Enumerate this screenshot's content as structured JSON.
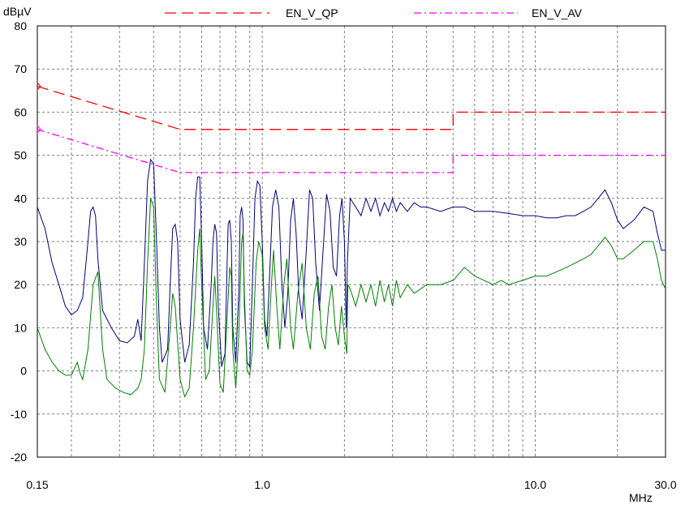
{
  "chart_data": {
    "type": "line",
    "ylabel": "dBµV",
    "xlabel": "MHz",
    "x_scale": "log",
    "xlim": [
      0.15,
      30.0
    ],
    "ylim": [
      -20,
      80
    ],
    "y_ticks": [
      -20,
      -10,
      0,
      10,
      20,
      30,
      40,
      50,
      60,
      70,
      80
    ],
    "x_tick_labels": [
      {
        "value": 0.15,
        "label": "0.15"
      },
      {
        "value": 1.0,
        "label": "1.0"
      },
      {
        "value": 10.0,
        "label": "10.0"
      },
      {
        "value": 30.0,
        "label": "30.0"
      }
    ],
    "grid": true,
    "legend": [
      {
        "name": "EN_V_QP",
        "color": "#ff0000",
        "style": "dashed"
      },
      {
        "name": "EN_V_AV",
        "color": "#ff00ff",
        "style": "dashdot"
      }
    ],
    "limit_lines": [
      {
        "name": "EN_V_QP",
        "color": "#ff0000",
        "style": "dashed",
        "points": [
          [
            0.15,
            66
          ],
          [
            0.5,
            56
          ],
          [
            5.0,
            56
          ],
          [
            5.0,
            60
          ],
          [
            30.0,
            60
          ]
        ]
      },
      {
        "name": "EN_V_AV",
        "color": "#ff00ff",
        "style": "dashdot",
        "points": [
          [
            0.15,
            56
          ],
          [
            0.5,
            46
          ],
          [
            5.0,
            46
          ],
          [
            5.0,
            50
          ],
          [
            30.0,
            50
          ]
        ]
      }
    ],
    "series": [
      {
        "color": "#000080",
        "points": [
          [
            0.15,
            38
          ],
          [
            0.16,
            33
          ],
          [
            0.17,
            25
          ],
          [
            0.18,
            20
          ],
          [
            0.19,
            15
          ],
          [
            0.2,
            13
          ],
          [
            0.21,
            14
          ],
          [
            0.22,
            17
          ],
          [
            0.23,
            30
          ],
          [
            0.235,
            37
          ],
          [
            0.24,
            38
          ],
          [
            0.245,
            36
          ],
          [
            0.25,
            26
          ],
          [
            0.26,
            14
          ],
          [
            0.28,
            10
          ],
          [
            0.3,
            7
          ],
          [
            0.32,
            6.5
          ],
          [
            0.34,
            8
          ],
          [
            0.35,
            12
          ],
          [
            0.36,
            7
          ],
          [
            0.37,
            25
          ],
          [
            0.38,
            44
          ],
          [
            0.39,
            49
          ],
          [
            0.4,
            48
          ],
          [
            0.41,
            30
          ],
          [
            0.42,
            10
          ],
          [
            0.43,
            2
          ],
          [
            0.45,
            5
          ],
          [
            0.46,
            20
          ],
          [
            0.47,
            33
          ],
          [
            0.48,
            34
          ],
          [
            0.49,
            30
          ],
          [
            0.5,
            12
          ],
          [
            0.52,
            2
          ],
          [
            0.54,
            6
          ],
          [
            0.56,
            25
          ],
          [
            0.57,
            40
          ],
          [
            0.58,
            45
          ],
          [
            0.59,
            45
          ],
          [
            0.6,
            30
          ],
          [
            0.61,
            10
          ],
          [
            0.63,
            5
          ],
          [
            0.65,
            20
          ],
          [
            0.66,
            30
          ],
          [
            0.67,
            34
          ],
          [
            0.68,
            32
          ],
          [
            0.69,
            15
          ],
          [
            0.71,
            1
          ],
          [
            0.73,
            4
          ],
          [
            0.74,
            20
          ],
          [
            0.75,
            34
          ],
          [
            0.76,
            35
          ],
          [
            0.77,
            30
          ],
          [
            0.78,
            10
          ],
          [
            0.8,
            2
          ],
          [
            0.82,
            18
          ],
          [
            0.83,
            36
          ],
          [
            0.84,
            38
          ],
          [
            0.85,
            35
          ],
          [
            0.86,
            15
          ],
          [
            0.88,
            2
          ],
          [
            0.9,
            1
          ],
          [
            0.92,
            20
          ],
          [
            0.94,
            40
          ],
          [
            0.96,
            44
          ],
          [
            0.98,
            43
          ],
          [
            1.0,
            30
          ],
          [
            1.02,
            12
          ],
          [
            1.04,
            8
          ],
          [
            1.06,
            20
          ],
          [
            1.09,
            38
          ],
          [
            1.12,
            42
          ],
          [
            1.15,
            38
          ],
          [
            1.18,
            20
          ],
          [
            1.21,
            10
          ],
          [
            1.24,
            18
          ],
          [
            1.27,
            35
          ],
          [
            1.3,
            40
          ],
          [
            1.33,
            32
          ],
          [
            1.36,
            18
          ],
          [
            1.4,
            12
          ],
          [
            1.45,
            28
          ],
          [
            1.49,
            42
          ],
          [
            1.53,
            40
          ],
          [
            1.57,
            25
          ],
          [
            1.62,
            14
          ],
          [
            1.67,
            28
          ],
          [
            1.72,
            41
          ],
          [
            1.77,
            37
          ],
          [
            1.82,
            24
          ],
          [
            1.87,
            22
          ],
          [
            1.92,
            36
          ],
          [
            1.96,
            40
          ],
          [
            2.0,
            30
          ],
          [
            2.03,
            10
          ],
          [
            2.05,
            25
          ],
          [
            2.1,
            40
          ],
          [
            2.2,
            38
          ],
          [
            2.3,
            36
          ],
          [
            2.4,
            40
          ],
          [
            2.5,
            37
          ],
          [
            2.6,
            40
          ],
          [
            2.7,
            36
          ],
          [
            2.8,
            39
          ],
          [
            2.9,
            37
          ],
          [
            3.0,
            40
          ],
          [
            3.1,
            37
          ],
          [
            3.2,
            39
          ],
          [
            3.4,
            37
          ],
          [
            3.6,
            39
          ],
          [
            3.8,
            38
          ],
          [
            4.0,
            38
          ],
          [
            4.5,
            37
          ],
          [
            5.0,
            38
          ],
          [
            5.5,
            38
          ],
          [
            6.0,
            37
          ],
          [
            7.0,
            37
          ],
          [
            8.0,
            36.5
          ],
          [
            9.0,
            36
          ],
          [
            10.0,
            36
          ],
          [
            11.0,
            35.5
          ],
          [
            12.0,
            35.5
          ],
          [
            13.0,
            36
          ],
          [
            14.0,
            36
          ],
          [
            15.0,
            37
          ],
          [
            16.0,
            38
          ],
          [
            17.0,
            40
          ],
          [
            18.0,
            42
          ],
          [
            19.0,
            39
          ],
          [
            20.0,
            35
          ],
          [
            21.0,
            33
          ],
          [
            23.0,
            35
          ],
          [
            25.0,
            38
          ],
          [
            27.0,
            37
          ],
          [
            28.0,
            32
          ],
          [
            29.0,
            28
          ],
          [
            30.0,
            28
          ]
        ]
      },
      {
        "color": "#008000",
        "points": [
          [
            0.15,
            10
          ],
          [
            0.16,
            5
          ],
          [
            0.17,
            2
          ],
          [
            0.18,
            0
          ],
          [
            0.19,
            -1
          ],
          [
            0.2,
            -1
          ],
          [
            0.21,
            2
          ],
          [
            0.215,
            -0.5
          ],
          [
            0.22,
            -2
          ],
          [
            0.23,
            5
          ],
          [
            0.24,
            20
          ],
          [
            0.25,
            23
          ],
          [
            0.26,
            5
          ],
          [
            0.27,
            -2
          ],
          [
            0.29,
            -4
          ],
          [
            0.31,
            -5
          ],
          [
            0.33,
            -5.5
          ],
          [
            0.35,
            -4
          ],
          [
            0.36,
            -2
          ],
          [
            0.37,
            5
          ],
          [
            0.38,
            25
          ],
          [
            0.39,
            40
          ],
          [
            0.4,
            38
          ],
          [
            0.41,
            15
          ],
          [
            0.42,
            -2
          ],
          [
            0.44,
            -5
          ],
          [
            0.46,
            10
          ],
          [
            0.47,
            18
          ],
          [
            0.48,
            15
          ],
          [
            0.5,
            -2
          ],
          [
            0.52,
            -6
          ],
          [
            0.54,
            -4
          ],
          [
            0.56,
            10
          ],
          [
            0.58,
            28
          ],
          [
            0.59,
            33
          ],
          [
            0.6,
            20
          ],
          [
            0.62,
            -2
          ],
          [
            0.64,
            0
          ],
          [
            0.66,
            15
          ],
          [
            0.67,
            22
          ],
          [
            0.68,
            14
          ],
          [
            0.7,
            -3
          ],
          [
            0.72,
            -5
          ],
          [
            0.74,
            10
          ],
          [
            0.76,
            24
          ],
          [
            0.77,
            22
          ],
          [
            0.78,
            5
          ],
          [
            0.8,
            -4
          ],
          [
            0.82,
            8
          ],
          [
            0.84,
            30
          ],
          [
            0.85,
            32
          ],
          [
            0.86,
            18
          ],
          [
            0.88,
            0
          ],
          [
            0.9,
            -1
          ],
          [
            0.92,
            5
          ],
          [
            0.95,
            25
          ],
          [
            0.97,
            30
          ],
          [
            1.0,
            27
          ],
          [
            1.02,
            10
          ],
          [
            1.05,
            5
          ],
          [
            1.08,
            20
          ],
          [
            1.1,
            28
          ],
          [
            1.13,
            15
          ],
          [
            1.16,
            5
          ],
          [
            1.2,
            20
          ],
          [
            1.23,
            26
          ],
          [
            1.27,
            10
          ],
          [
            1.3,
            5
          ],
          [
            1.35,
            18
          ],
          [
            1.4,
            25
          ],
          [
            1.45,
            10
          ],
          [
            1.5,
            5
          ],
          [
            1.55,
            18
          ],
          [
            1.6,
            22
          ],
          [
            1.65,
            8
          ],
          [
            1.7,
            5
          ],
          [
            1.75,
            15
          ],
          [
            1.8,
            20
          ],
          [
            1.85,
            10
          ],
          [
            1.9,
            6
          ],
          [
            1.95,
            15
          ],
          [
            2.0,
            8
          ],
          [
            2.04,
            4
          ],
          [
            2.06,
            20
          ],
          [
            2.1,
            19
          ],
          [
            2.2,
            15
          ],
          [
            2.3,
            20
          ],
          [
            2.4,
            16
          ],
          [
            2.5,
            20
          ],
          [
            2.6,
            15
          ],
          [
            2.7,
            21
          ],
          [
            2.8,
            16
          ],
          [
            2.9,
            20
          ],
          [
            3.0,
            15
          ],
          [
            3.1,
            21
          ],
          [
            3.2,
            17
          ],
          [
            3.4,
            20
          ],
          [
            3.6,
            18
          ],
          [
            3.8,
            19
          ],
          [
            4.0,
            20
          ],
          [
            4.5,
            20
          ],
          [
            5.0,
            21
          ],
          [
            5.5,
            24
          ],
          [
            6.0,
            22
          ],
          [
            6.5,
            21
          ],
          [
            7.0,
            20
          ],
          [
            7.5,
            21
          ],
          [
            8.0,
            20
          ],
          [
            9.0,
            21
          ],
          [
            10.0,
            22
          ],
          [
            11.0,
            22
          ],
          [
            12.0,
            23
          ],
          [
            13.0,
            24
          ],
          [
            14.0,
            25
          ],
          [
            15.0,
            26
          ],
          [
            16.0,
            27
          ],
          [
            17.0,
            29
          ],
          [
            18.0,
            31
          ],
          [
            19.0,
            29
          ],
          [
            20.0,
            26
          ],
          [
            21.0,
            26
          ],
          [
            23.0,
            28
          ],
          [
            25.0,
            30
          ],
          [
            27.0,
            30
          ],
          [
            28.0,
            26
          ],
          [
            29.0,
            21
          ],
          [
            30.0,
            19
          ]
        ]
      }
    ]
  }
}
